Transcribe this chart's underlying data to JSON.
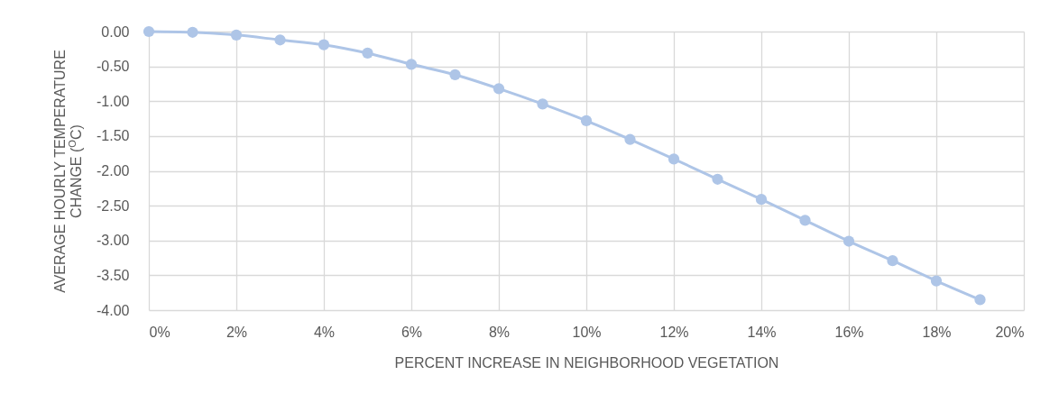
{
  "chart_data": {
    "type": "line",
    "xlabel": "PERCENT INCREASE IN NEIGHBORHOOD VEGETATION",
    "ylabel": "AVERAGE HOURLY TEMPERATURE CHANGE ($^{O}$C)",
    "x": [
      0,
      1,
      2,
      3,
      4,
      5,
      6,
      7,
      8,
      9,
      10,
      11,
      12,
      13,
      14,
      15,
      16,
      17,
      18,
      19
    ],
    "series": [
      {
        "color": "#aec5e7",
        "values": [
          0,
          -0.01,
          -0.05,
          -0.12,
          -0.19,
          -0.31,
          -0.47,
          -0.62,
          -0.82,
          -1.04,
          -1.28,
          -1.55,
          -1.83,
          -2.12,
          -2.41,
          -2.71,
          -3.01,
          -3.29,
          -3.58,
          -3.85
        ]
      }
    ],
    "xlim": [
      0,
      20
    ],
    "xticks": [
      {
        "value": 0,
        "label": "0%"
      },
      {
        "value": 2,
        "label": "2%"
      },
      {
        "value": 4,
        "label": "4%"
      },
      {
        "value": 6,
        "label": "6%"
      },
      {
        "value": 8,
        "label": "8%"
      },
      {
        "value": 10,
        "label": "10%"
      },
      {
        "value": 12,
        "label": "12%"
      },
      {
        "value": 14,
        "label": "14%"
      },
      {
        "value": 16,
        "label": "16%"
      },
      {
        "value": 18,
        "label": "18%"
      },
      {
        "value": 20,
        "label": "20%"
      }
    ],
    "ylim": [
      -4,
      0
    ],
    "yticks": [
      {
        "value": -4,
        "label": "-4.00"
      },
      {
        "value": -3.5,
        "label": "-3.50"
      },
      {
        "value": -3,
        "label": "-3.00"
      },
      {
        "value": -2.5,
        "label": "-2.50"
      },
      {
        "value": -2,
        "label": "-2.00"
      },
      {
        "value": -1.5,
        "label": "-1.50"
      },
      {
        "value": -1,
        "label": "-1.00"
      },
      {
        "value": -0.5,
        "label": "-0.50"
      },
      {
        "value": 0,
        "label": "0.00"
      }
    ],
    "grid": true,
    "marker": "circle",
    "line_style": "solid"
  }
}
